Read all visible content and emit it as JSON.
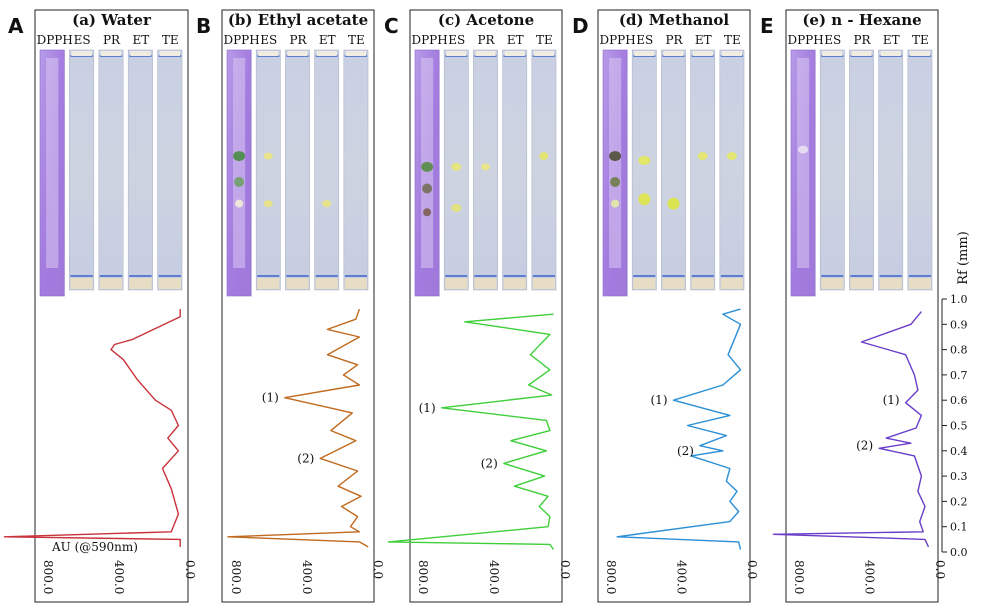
{
  "figure": {
    "au_label": "AU (@590nm)",
    "rf_axis": {
      "title": "Rf (mm)",
      "ticks": [
        "0.0",
        "0.1",
        "0.2",
        "0.3",
        "0.4",
        "0.5",
        "0.6",
        "0.7",
        "0.8",
        "0.9",
        "1.0"
      ]
    },
    "x_ticks": [
      "800.0",
      "400.0",
      "0.0"
    ],
    "lane_labels": [
      "DPPH",
      "ES",
      "PR",
      "ET",
      "TE"
    ],
    "panels": [
      {
        "letter": "A",
        "title": "(a) Water",
        "color": "#c8323a",
        "peak_labels": []
      },
      {
        "letter": "B",
        "title": "(b) Ethyl acetate",
        "color": "#c06a1e",
        "peak_labels": [
          "(1)",
          "(2)"
        ]
      },
      {
        "letter": "C",
        "title": "(c) Acetone",
        "color": "#3fcf3a",
        "peak_labels": [
          "(1)",
          "(2)"
        ]
      },
      {
        "letter": "D",
        "title": "(d) Methanol",
        "color": "#2b8fd6",
        "peak_labels": [
          "(1)",
          "(2)"
        ]
      },
      {
        "letter": "E",
        "title": "(e) n - Hexane",
        "color": "#6a3dc9",
        "peak_labels": [
          "(1)",
          "(2)"
        ]
      }
    ]
  },
  "chart_data": [
    {
      "type": "line",
      "title": "(a) Water",
      "x_axis": "AU (@590nm)",
      "y_axis": "Rf (mm)",
      "xlim": [
        800,
        0
      ],
      "ylim": [
        0,
        1
      ],
      "points": [
        [
          10,
          0.96
        ],
        [
          10,
          0.93
        ],
        [
          280,
          0.84
        ],
        [
          380,
          0.82
        ],
        [
          400,
          0.8
        ],
        [
          330,
          0.76
        ],
        [
          250,
          0.68
        ],
        [
          150,
          0.6
        ],
        [
          60,
          0.56
        ],
        [
          20,
          0.5
        ],
        [
          80,
          0.45
        ],
        [
          20,
          0.4
        ],
        [
          110,
          0.33
        ],
        [
          60,
          0.25
        ],
        [
          20,
          0.15
        ],
        [
          60,
          0.08
        ],
        [
          1000,
          0.06
        ],
        [
          10,
          0.05
        ],
        [
          10,
          0.02
        ]
      ]
    },
    {
      "type": "line",
      "title": "(b) Ethyl acetate",
      "x_axis": "AU (@590nm)",
      "y_axis": "Rf (mm)",
      "xlim": [
        800,
        0
      ],
      "ylim": [
        0,
        1
      ],
      "peaks": [
        {
          "label": "(1)",
          "rf": 0.61
        },
        {
          "label": "(2)",
          "rf": 0.37
        }
      ],
      "points": [
        [
          60,
          0.96
        ],
        [
          80,
          0.92
        ],
        [
          240,
          0.88
        ],
        [
          60,
          0.85
        ],
        [
          240,
          0.78
        ],
        [
          70,
          0.74
        ],
        [
          150,
          0.7
        ],
        [
          60,
          0.66
        ],
        [
          480,
          0.61
        ],
        [
          100,
          0.55
        ],
        [
          220,
          0.48
        ],
        [
          80,
          0.44
        ],
        [
          280,
          0.37
        ],
        [
          70,
          0.32
        ],
        [
          180,
          0.26
        ],
        [
          50,
          0.22
        ],
        [
          160,
          0.18
        ],
        [
          70,
          0.14
        ],
        [
          110,
          0.1
        ],
        [
          60,
          0.08
        ],
        [
          800,
          0.06
        ],
        [
          60,
          0.04
        ],
        [
          10,
          0.02
        ]
      ]
    },
    {
      "type": "line",
      "title": "(c) Acetone",
      "x_axis": "AU (@590nm)",
      "y_axis": "Rf (mm)",
      "xlim": [
        800,
        0
      ],
      "ylim": [
        0,
        1
      ],
      "peaks": [
        {
          "label": "(1)",
          "rf": 0.57
        },
        {
          "label": "(2)",
          "rf": 0.35
        }
      ],
      "points": [
        [
          20,
          0.94
        ],
        [
          520,
          0.91
        ],
        [
          40,
          0.86
        ],
        [
          150,
          0.78
        ],
        [
          40,
          0.72
        ],
        [
          160,
          0.66
        ],
        [
          30,
          0.62
        ],
        [
          650,
          0.57
        ],
        [
          60,
          0.52
        ],
        [
          40,
          0.48
        ],
        [
          260,
          0.44
        ],
        [
          60,
          0.4
        ],
        [
          300,
          0.35
        ],
        [
          70,
          0.3
        ],
        [
          240,
          0.26
        ],
        [
          50,
          0.22
        ],
        [
          100,
          0.18
        ],
        [
          40,
          0.14
        ],
        [
          50,
          0.1
        ],
        [
          950,
          0.04
        ],
        [
          40,
          0.03
        ],
        [
          20,
          0.01
        ]
      ]
    },
    {
      "type": "line",
      "title": "(d) Methanol",
      "x_axis": "AU (@590nm)",
      "y_axis": "Rf (mm)",
      "xlim": [
        800,
        0
      ],
      "ylim": [
        0,
        1
      ],
      "peaks": [
        {
          "label": "(1)",
          "rf": 0.6
        },
        {
          "label": "(2)",
          "rf": 0.4
        }
      ],
      "points": [
        [
          20,
          0.96
        ],
        [
          120,
          0.94
        ],
        [
          20,
          0.9
        ],
        [
          90,
          0.78
        ],
        [
          20,
          0.72
        ],
        [
          120,
          0.66
        ],
        [
          400,
          0.6
        ],
        [
          80,
          0.54
        ],
        [
          320,
          0.5
        ],
        [
          100,
          0.46
        ],
        [
          250,
          0.42
        ],
        [
          120,
          0.4
        ],
        [
          300,
          0.38
        ],
        [
          80,
          0.33
        ],
        [
          100,
          0.28
        ],
        [
          40,
          0.24
        ],
        [
          80,
          0.2
        ],
        [
          30,
          0.16
        ],
        [
          80,
          0.12
        ],
        [
          720,
          0.06
        ],
        [
          30,
          0.04
        ],
        [
          20,
          0.01
        ]
      ]
    },
    {
      "type": "line",
      "title": "(e) n - Hexane",
      "x_axis": "AU (@590nm)",
      "y_axis": "Rf (mm)",
      "xlim": [
        800,
        0
      ],
      "ylim": [
        0,
        1
      ],
      "peaks": [
        {
          "label": "(1)",
          "rf": 0.6
        },
        {
          "label": "(2)",
          "rf": 0.42
        }
      ],
      "points": [
        [
          60,
          0.95
        ],
        [
          120,
          0.9
        ],
        [
          400,
          0.83
        ],
        [
          150,
          0.78
        ],
        [
          100,
          0.7
        ],
        [
          80,
          0.64
        ],
        [
          150,
          0.59
        ],
        [
          60,
          0.54
        ],
        [
          90,
          0.49
        ],
        [
          260,
          0.45
        ],
        [
          120,
          0.43
        ],
        [
          300,
          0.41
        ],
        [
          100,
          0.38
        ],
        [
          60,
          0.3
        ],
        [
          80,
          0.24
        ],
        [
          40,
          0.18
        ],
        [
          70,
          0.12
        ],
        [
          50,
          0.08
        ],
        [
          900,
          0.07
        ],
        [
          40,
          0.05
        ],
        [
          20,
          0.02
        ]
      ]
    }
  ]
}
